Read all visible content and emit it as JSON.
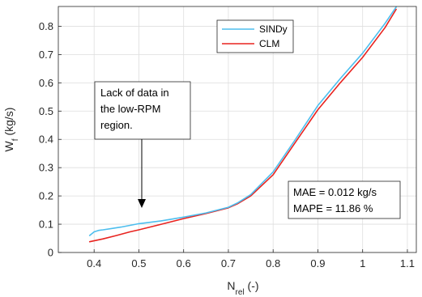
{
  "chart_data": {
    "type": "line",
    "xlabel": {
      "main": "N",
      "sub": "rel",
      "unit": " (-)"
    },
    "ylabel": {
      "main": "W",
      "sub": "f",
      "unit": " (kg/s)"
    },
    "xlim": [
      0.32,
      1.12
    ],
    "ylim": [
      0,
      0.87
    ],
    "xticks": [
      0.4,
      0.5,
      0.6,
      0.7,
      0.8,
      0.9,
      1,
      1.1
    ],
    "xtick_labels": [
      "0.4",
      "0.5",
      "0.6",
      "0.7",
      "0.8",
      "0.9",
      "1",
      "1.1"
    ],
    "yticks": [
      0,
      0.1,
      0.2,
      0.3,
      0.4,
      0.5,
      0.6,
      0.7,
      0.8
    ],
    "ytick_labels": [
      "0",
      "0.1",
      "0.2",
      "0.3",
      "0.4",
      "0.5",
      "0.6",
      "0.7",
      "0.8"
    ],
    "grid": true,
    "legend_position": "top-center",
    "series": [
      {
        "name": "SINDy",
        "color": "#4DBEEE",
        "x": [
          0.39,
          0.4,
          0.41,
          0.42,
          0.44,
          0.46,
          0.48,
          0.5,
          0.55,
          0.6,
          0.65,
          0.7,
          0.72,
          0.75,
          0.8,
          0.85,
          0.9,
          0.95,
          1.0,
          1.05,
          1.075
        ],
        "y": [
          0.06,
          0.073,
          0.078,
          0.08,
          0.085,
          0.09,
          0.096,
          0.102,
          0.112,
          0.125,
          0.14,
          0.16,
          0.175,
          0.205,
          0.285,
          0.4,
          0.52,
          0.615,
          0.705,
          0.81,
          0.868
        ]
      },
      {
        "name": "CLM",
        "color": "#E8231F",
        "x": [
          0.39,
          0.42,
          0.45,
          0.48,
          0.5,
          0.55,
          0.6,
          0.65,
          0.7,
          0.72,
          0.75,
          0.8,
          0.85,
          0.9,
          0.95,
          1.0,
          1.05,
          1.075
        ],
        "y": [
          0.038,
          0.048,
          0.06,
          0.073,
          0.08,
          0.1,
          0.12,
          0.138,
          0.158,
          0.172,
          0.2,
          0.275,
          0.39,
          0.505,
          0.6,
          0.69,
          0.795,
          0.86
        ]
      }
    ],
    "annotations": {
      "callout": {
        "lines": [
          "Lack of data in",
          "the low-RPM",
          "region."
        ],
        "arrow_target": {
          "x": 0.5,
          "y": 0.145
        }
      },
      "metrics": {
        "lines": [
          "MAE = 0.012 kg/s",
          "MAPE = 11.86 %"
        ]
      }
    }
  }
}
